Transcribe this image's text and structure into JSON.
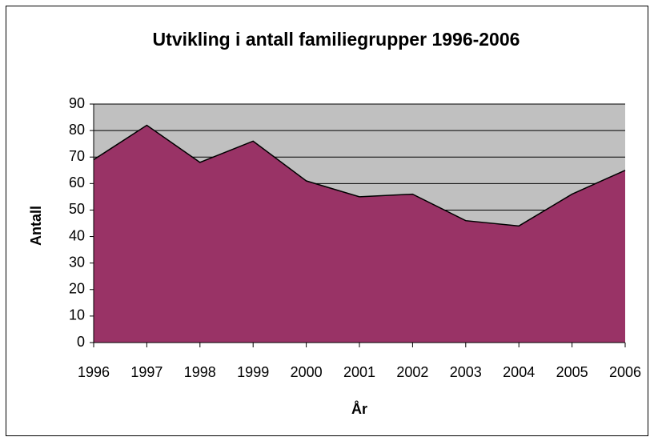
{
  "chart_data": {
    "type": "area",
    "title": "Utvikling i antall familiegrupper 1996-2006",
    "x_label": "År",
    "y_label": "Antall",
    "categories": [
      "1996",
      "1997",
      "1998",
      "1999",
      "2000",
      "2001",
      "2002",
      "2003",
      "2004",
      "2005",
      "2006"
    ],
    "values": [
      69,
      82,
      68,
      76,
      61,
      55,
      56,
      46,
      44,
      56,
      65
    ],
    "color": "#993366",
    "plot_background": "#c0c0c0",
    "ylim": [
      0,
      90
    ],
    "yticks": [
      0,
      10,
      20,
      30,
      40,
      50,
      60,
      70,
      80,
      90
    ],
    "grid": true
  }
}
